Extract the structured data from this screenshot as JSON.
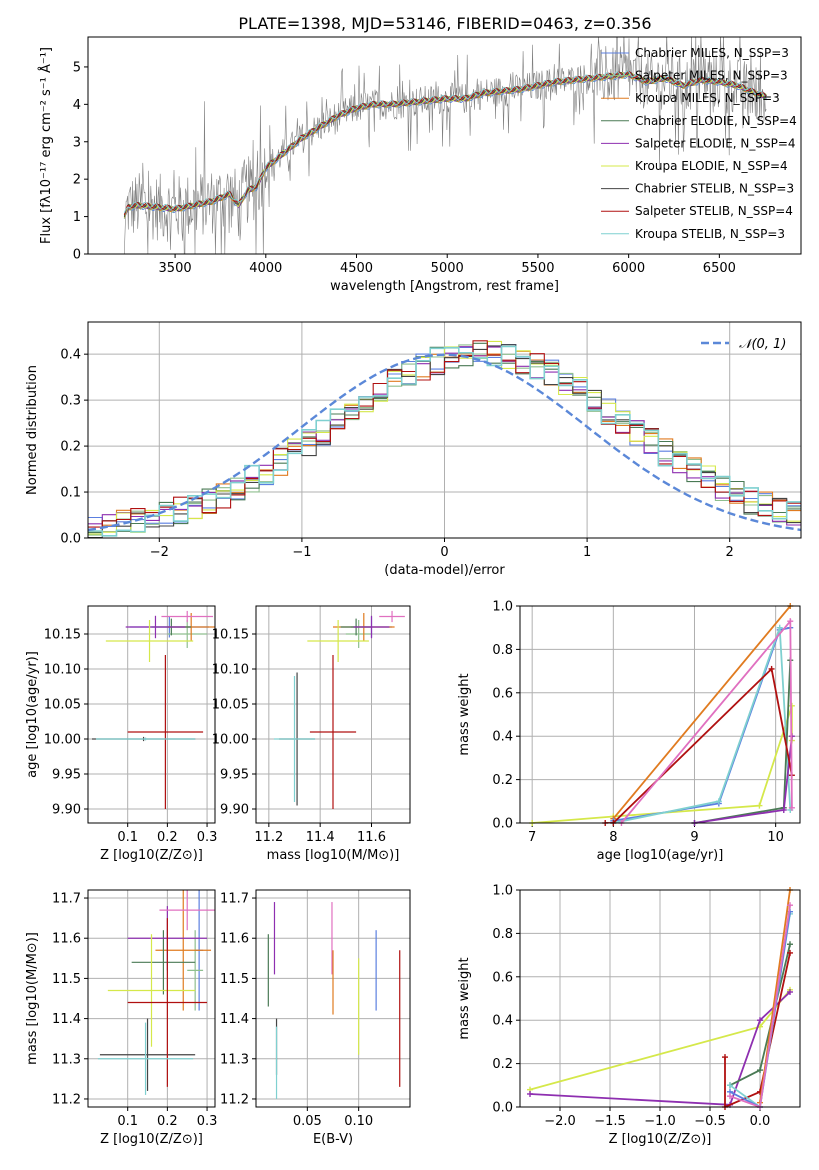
{
  "figure_title": "PLATE=1398, MJD=53146, FIBERID=0463, z=0.356",
  "colors": {
    "chabrier_miles": "#5b7fe0",
    "salpeter_miles": "#8fbf8f",
    "kroupa_miles": "#e07b20",
    "chabrier_elodie": "#4a7a55",
    "salpeter_elodie": "#8e2fb0",
    "kroupa_elodie": "#d5e84a",
    "chabrier_stelib": "#444444",
    "salpeter_stelib": "#b01010",
    "kroupa_stelib": "#7fd0d0",
    "pink": "#e070c0",
    "data_gray": "#808080",
    "normal_curve": "#5b88d8",
    "grid": "#b0b0b0"
  },
  "chart_data": [
    {
      "id": "spectrum",
      "type": "line",
      "title": "PLATE=1398, MJD=53146, FIBERID=0463, z=0.356",
      "xlabel": "wavelength [Angstrom, rest frame]",
      "ylabel": "Flux [fλ10⁻¹⁷ erg cm⁻² s⁻¹ Å⁻¹]",
      "xlim": [
        3020,
        6950
      ],
      "ylim": [
        0,
        5.8
      ],
      "xticks": [
        3500,
        4000,
        4500,
        5000,
        5500,
        6000,
        6500
      ],
      "yticks": [
        0,
        1,
        2,
        3,
        4,
        5
      ],
      "grid": false,
      "legend_position": "top-right",
      "model_curve": {
        "x": [
          3220,
          3240,
          3300,
          3400,
          3500,
          3600,
          3700,
          3800,
          3850,
          3900,
          3950,
          4000,
          4100,
          4200,
          4300,
          4400,
          4500,
          4600,
          4700,
          4800,
          4900,
          5000,
          5100,
          5200,
          5300,
          5400,
          5500,
          5600,
          5700,
          5800,
          5900,
          6000,
          6100,
          6200,
          6300,
          6400,
          6500,
          6600,
          6700,
          6760
        ],
        "y": [
          1.0,
          1.25,
          1.3,
          1.25,
          1.2,
          1.3,
          1.4,
          1.6,
          1.3,
          1.7,
          1.8,
          2.3,
          2.7,
          3.1,
          3.4,
          3.7,
          3.9,
          4.0,
          4.0,
          4.05,
          4.1,
          4.15,
          4.15,
          4.3,
          4.35,
          4.4,
          4.5,
          4.6,
          4.65,
          4.7,
          4.75,
          4.8,
          4.6,
          4.7,
          4.5,
          4.65,
          4.6,
          4.5,
          4.3,
          4.2
        ]
      },
      "series": [
        {
          "name": "Chabrier MILES, N_SSP=3",
          "color_key": "chabrier_miles"
        },
        {
          "name": "Salpeter MILES, N_SSP=3",
          "color_key": "salpeter_miles"
        },
        {
          "name": "Kroupa MILES, N_SSP=3",
          "color_key": "kroupa_miles"
        },
        {
          "name": "Chabrier ELODIE, N_SSP=4",
          "color_key": "chabrier_elodie"
        },
        {
          "name": "Salpeter ELODIE, N_SSP=4",
          "color_key": "salpeter_elodie"
        },
        {
          "name": "Kroupa ELODIE, N_SSP=4",
          "color_key": "kroupa_elodie"
        },
        {
          "name": "Chabrier STELIB, N_SSP=3",
          "color_key": "chabrier_stelib"
        },
        {
          "name": "Salpeter STELIB, N_SSP=4",
          "color_key": "salpeter_stelib"
        },
        {
          "name": "Kroupa STELIB, N_SSP=3",
          "color_key": "kroupa_stelib"
        }
      ]
    },
    {
      "id": "residuals",
      "type": "line",
      "xlabel": "(data-model)/error",
      "ylabel": "Normed distribution",
      "xlim": [
        -2.5,
        2.5
      ],
      "ylim": [
        0,
        0.47
      ],
      "xticks": [
        -2,
        -1,
        0,
        1,
        2
      ],
      "yticks": [
        0.0,
        0.1,
        0.2,
        0.3,
        0.4
      ],
      "grid": true,
      "legend_position": "top-right",
      "normal_curve_label": "𝒩(0, 1)",
      "histogram_bin_width": 0.1
    },
    {
      "id": "age_vs_Z",
      "type": "scatter",
      "xlabel": "Z [log10(Z/Z⊙)]",
      "ylabel": "age [log10(age/yr)]",
      "xlim": [
        0.0,
        0.32
      ],
      "ylim": [
        9.88,
        10.19
      ],
      "xticks": [
        0.1,
        0.2,
        0.3
      ],
      "yticks": [
        9.9,
        9.95,
        10.0,
        10.05,
        10.1,
        10.15
      ],
      "grid": true,
      "points": [
        {
          "color_key": "chabrier_miles",
          "x": 0.205,
          "y": 10.16,
          "xerr": 0.1,
          "yerr": 0.015
        },
        {
          "color_key": "salpeter_miles",
          "x": 0.25,
          "y": 10.15,
          "xerr": 0.05,
          "yerr": 0.02
        },
        {
          "color_key": "kroupa_miles",
          "x": 0.26,
          "y": 10.16,
          "xerr": 0.06,
          "yerr": 0.02
        },
        {
          "color_key": "chabrier_elodie",
          "x": 0.21,
          "y": 10.16,
          "xerr": 0.05,
          "yerr": 0.012
        },
        {
          "color_key": "salpeter_elodie",
          "x": 0.17,
          "y": 10.16,
          "xerr": 0.075,
          "yerr": 0.016
        },
        {
          "color_key": "kroupa_elodie",
          "x": 0.155,
          "y": 10.14,
          "xerr": 0.11,
          "yerr": 0.03
        },
        {
          "color_key": "chabrier_stelib",
          "x": 0.14,
          "y": 10.0,
          "xerr": 0.13,
          "yerr": 0.003
        },
        {
          "color_key": "salpeter_stelib",
          "x": 0.195,
          "y": 10.01,
          "xerr": 0.095,
          "yerr": 0.11
        },
        {
          "color_key": "kroupa_stelib",
          "x": 0.145,
          "y": 10.0,
          "xerr": 0.125,
          "yerr": 0.002
        },
        {
          "color_key": "pink",
          "x": 0.25,
          "y": 10.175,
          "xerr": 0.065,
          "yerr": 0.008
        }
      ]
    },
    {
      "id": "age_vs_mass",
      "type": "scatter",
      "xlabel": "mass [log10(M/M⊙)]",
      "ylabel": "",
      "xlim": [
        11.15,
        11.75
      ],
      "ylim": [
        9.88,
        10.19
      ],
      "xticks": [
        11.2,
        11.4,
        11.6
      ],
      "yticks": [
        9.9,
        9.95,
        10.0,
        10.05,
        10.1,
        10.15
      ],
      "grid": true,
      "points": [
        {
          "color_key": "chabrier_miles",
          "x": 11.6,
          "y": 10.16,
          "xerr": 0.08,
          "yerr": 0.015
        },
        {
          "color_key": "salpeter_miles",
          "x": 11.55,
          "y": 10.15,
          "xerr": 0.05,
          "yerr": 0.02
        },
        {
          "color_key": "kroupa_miles",
          "x": 11.57,
          "y": 10.16,
          "xerr": 0.12,
          "yerr": 0.02
        },
        {
          "color_key": "chabrier_elodie",
          "x": 11.54,
          "y": 10.16,
          "xerr": 0.06,
          "yerr": 0.012
        },
        {
          "color_key": "salpeter_elodie",
          "x": 11.6,
          "y": 10.16,
          "xerr": 0.07,
          "yerr": 0.016
        },
        {
          "color_key": "kroupa_elodie",
          "x": 11.47,
          "y": 10.14,
          "xerr": 0.12,
          "yerr": 0.03
        },
        {
          "color_key": "chabrier_stelib",
          "x": 11.31,
          "y": 10.0,
          "xerr": 0.07,
          "yerr": 0.095
        },
        {
          "color_key": "salpeter_stelib",
          "x": 11.45,
          "y": 10.01,
          "xerr": 0.09,
          "yerr": 0.11
        },
        {
          "color_key": "kroupa_stelib",
          "x": 11.3,
          "y": 10.0,
          "xerr": 0.08,
          "yerr": 0.09
        },
        {
          "color_key": "pink",
          "x": 11.68,
          "y": 10.175,
          "xerr": 0.05,
          "yerr": 0.008
        }
      ]
    },
    {
      "id": "weight_vs_age",
      "type": "line",
      "xlabel": "age [log10(age/yr)]",
      "ylabel": "mass weight",
      "xlim": [
        6.85,
        10.3
      ],
      "ylim": [
        0,
        1.0
      ],
      "xticks": [
        7,
        8,
        9,
        10
      ],
      "yticks": [
        0.0,
        0.2,
        0.4,
        0.6,
        0.8,
        1.0
      ],
      "grid": true,
      "series": [
        {
          "color_key": "kroupa_elodie",
          "x": [
            7.0,
            8.0,
            9.8,
            10.2,
            10.2
          ],
          "y": [
            0.0,
            0.03,
            0.08,
            0.54,
            0.38
          ]
        },
        {
          "color_key": "kroupa_miles",
          "x": [
            8.0,
            10.18
          ],
          "y": [
            0.02,
            1.0
          ]
        },
        {
          "color_key": "chabrier_miles",
          "x": [
            8.0,
            9.3,
            10.05,
            10.18
          ],
          "y": [
            0.01,
            0.09,
            0.89,
            0.9
          ]
        },
        {
          "color_key": "kroupa_stelib",
          "x": [
            8.0,
            9.3,
            10.05,
            10.18
          ],
          "y": [
            0.0,
            0.1,
            0.9,
            0.06
          ]
        },
        {
          "color_key": "chabrier_elodie",
          "x": [
            9.0,
            10.1,
            10.18
          ],
          "y": [
            0.0,
            0.07,
            0.75
          ]
        },
        {
          "color_key": "salpeter_elodie",
          "x": [
            9.0,
            10.1,
            10.2
          ],
          "y": [
            0.0,
            0.06,
            0.4
          ]
        },
        {
          "color_key": "salpeter_stelib",
          "x": [
            7.9,
            8.0,
            9.95,
            10.2
          ],
          "y": [
            0.0,
            0.0,
            0.71,
            0.22
          ]
        },
        {
          "color_key": "pink",
          "x": [
            8.1,
            10.18,
            10.2
          ],
          "y": [
            0.0,
            0.93,
            0.07
          ]
        }
      ]
    },
    {
      "id": "mass_vs_Z",
      "type": "scatter",
      "xlabel": "Z [log10(Z/Z⊙)]",
      "ylabel": "mass [log10(M/M⊙)]",
      "xlim": [
        0.0,
        0.32
      ],
      "ylim": [
        11.18,
        11.72
      ],
      "xticks": [
        0.1,
        0.2,
        0.3
      ],
      "yticks": [
        11.2,
        11.3,
        11.4,
        11.5,
        11.6,
        11.7
      ],
      "grid": true,
      "points": [
        {
          "color_key": "chabrier_miles",
          "x": 0.28,
          "y": 11.57,
          "xerr": 0.01,
          "yerr": 0.15
        },
        {
          "color_key": "salpeter_miles",
          "x": 0.27,
          "y": 11.52,
          "xerr": 0.02,
          "yerr": 0.1
        },
        {
          "color_key": "kroupa_miles",
          "x": 0.24,
          "y": 11.57,
          "xerr": 0.07,
          "yerr": 0.15
        },
        {
          "color_key": "chabrier_elodie",
          "x": 0.19,
          "y": 11.54,
          "xerr": 0.08,
          "yerr": 0.08
        },
        {
          "color_key": "salpeter_elodie",
          "x": 0.2,
          "y": 11.6,
          "xerr": 0.1,
          "yerr": 0.08
        },
        {
          "color_key": "kroupa_elodie",
          "x": 0.16,
          "y": 11.47,
          "xerr": 0.11,
          "yerr": 0.14
        },
        {
          "color_key": "chabrier_stelib",
          "x": 0.15,
          "y": 11.31,
          "xerr": 0.12,
          "yerr": 0.09
        },
        {
          "color_key": "salpeter_stelib",
          "x": 0.2,
          "y": 11.44,
          "xerr": 0.1,
          "yerr": 0.21
        },
        {
          "color_key": "kroupa_stelib",
          "x": 0.145,
          "y": 11.3,
          "xerr": 0.12,
          "yerr": 0.09
        },
        {
          "color_key": "pink",
          "x": 0.25,
          "y": 11.67,
          "xerr": 0.07,
          "yerr": 0.05
        }
      ]
    },
    {
      "id": "mass_vs_ebv",
      "type": "scatter",
      "xlabel": "E(B-V)",
      "ylabel": "",
      "xlim": [
        0.0,
        0.15
      ],
      "ylim": [
        11.18,
        11.72
      ],
      "xticks": [
        0.05,
        0.1
      ],
      "xticklabels": [
        "0.05",
        "0.10"
      ],
      "yticks": [
        11.2,
        11.3,
        11.4,
        11.5,
        11.6,
        11.7
      ],
      "grid": true,
      "points": [
        {
          "color_key": "chabrier_elodie",
          "x": 0.012,
          "y": 11.52,
          "yerr": 0.09
        },
        {
          "color_key": "salpeter_elodie",
          "x": 0.018,
          "y": 11.6,
          "yerr": 0.09
        },
        {
          "color_key": "chabrier_stelib",
          "x": 0.02,
          "y": 11.33,
          "yerr": 0.07
        },
        {
          "color_key": "kroupa_stelib",
          "x": 0.02,
          "y": 11.29,
          "yerr": 0.09
        },
        {
          "color_key": "pink",
          "x": 0.074,
          "y": 11.6,
          "yerr": 0.09
        },
        {
          "color_key": "kroupa_miles",
          "x": 0.075,
          "y": 11.49,
          "yerr": 0.08
        },
        {
          "color_key": "kroupa_elodie",
          "x": 0.1,
          "y": 11.43,
          "yerr": 0.12
        },
        {
          "color_key": "chabrier_miles",
          "x": 0.117,
          "y": 11.52,
          "yerr": 0.1
        },
        {
          "color_key": "salpeter_stelib",
          "x": 0.14,
          "y": 11.4,
          "yerr": 0.17
        }
      ]
    },
    {
      "id": "weight_vs_Z",
      "type": "line",
      "xlabel": "Z [log10(Z/Z⊙)]",
      "ylabel": "mass weight",
      "xlim": [
        -2.4,
        0.4
      ],
      "ylim": [
        0,
        1.0
      ],
      "xticks": [
        -2.0,
        -1.5,
        -1.0,
        -0.5,
        0.0
      ],
      "yticks": [
        0.0,
        0.2,
        0.4,
        0.6,
        0.8,
        1.0
      ],
      "grid": true,
      "series": [
        {
          "color_key": "kroupa_elodie",
          "x": [
            -2.3,
            0.0,
            0.3
          ],
          "y": [
            0.08,
            0.37,
            0.54
          ]
        },
        {
          "color_key": "salpeter_elodie",
          "x": [
            -2.3,
            -0.3,
            0.0,
            0.3
          ],
          "y": [
            0.06,
            0.01,
            0.4,
            0.53
          ]
        },
        {
          "color_key": "chabrier_elodie",
          "x": [
            -0.3,
            0.0,
            0.3
          ],
          "y": [
            0.1,
            0.17,
            0.75
          ]
        },
        {
          "color_key": "salpeter_stelib",
          "x": [
            -0.35,
            -0.35,
            0.0,
            0.3
          ],
          "y": [
            0.23,
            0.0,
            0.07,
            0.71
          ]
        },
        {
          "color_key": "kroupa_stelib",
          "x": [
            -0.3,
            0.0,
            0.3
          ],
          "y": [
            0.1,
            0.0,
            0.89
          ]
        },
        {
          "color_key": "chabrier_miles",
          "x": [
            -0.3,
            0.0,
            0.3
          ],
          "y": [
            0.07,
            0.0,
            0.9
          ]
        },
        {
          "color_key": "kroupa_miles",
          "x": [
            0.0,
            0.3
          ],
          "y": [
            0.02,
            1.0
          ]
        },
        {
          "color_key": "pink",
          "x": [
            -0.3,
            0.0,
            0.3
          ],
          "y": [
            0.05,
            0.0,
            0.93
          ]
        }
      ]
    }
  ]
}
